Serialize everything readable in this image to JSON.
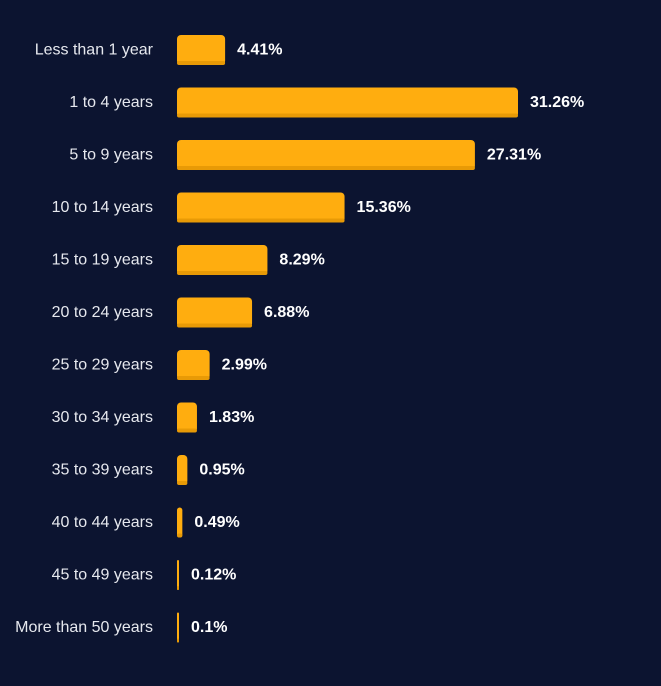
{
  "chart_data": {
    "type": "bar",
    "orientation": "horizontal",
    "categories": [
      "Less than 1 year",
      "1 to 4 years",
      "5 to 9 years",
      "10 to 14 years",
      "15 to 19 years",
      "20 to 24 years",
      "25 to 29 years",
      "30 to 34 years",
      "35 to 39 years",
      "40 to 44 years",
      "45 to 49 years",
      "More than 50 years"
    ],
    "values": [
      4.41,
      31.26,
      27.31,
      15.36,
      8.29,
      6.88,
      2.99,
      1.83,
      0.95,
      0.49,
      0.12,
      0.1
    ],
    "value_labels": [
      "4.41%",
      "31.26%",
      "27.31%",
      "15.36%",
      "8.29%",
      "6.88%",
      "2.99%",
      "1.83%",
      "0.95%",
      "0.49%",
      "0.12%",
      "0.1%"
    ],
    "title": "",
    "xlabel": "",
    "ylabel": "",
    "xlim": [
      0,
      31.26
    ],
    "grid": false,
    "legend": "none",
    "colors": {
      "background": "#0c1430",
      "bar": "#ffad0f",
      "bar_shade": "#e89a06",
      "category_text": "#e6e8ee",
      "value_text": "#ffffff"
    }
  }
}
